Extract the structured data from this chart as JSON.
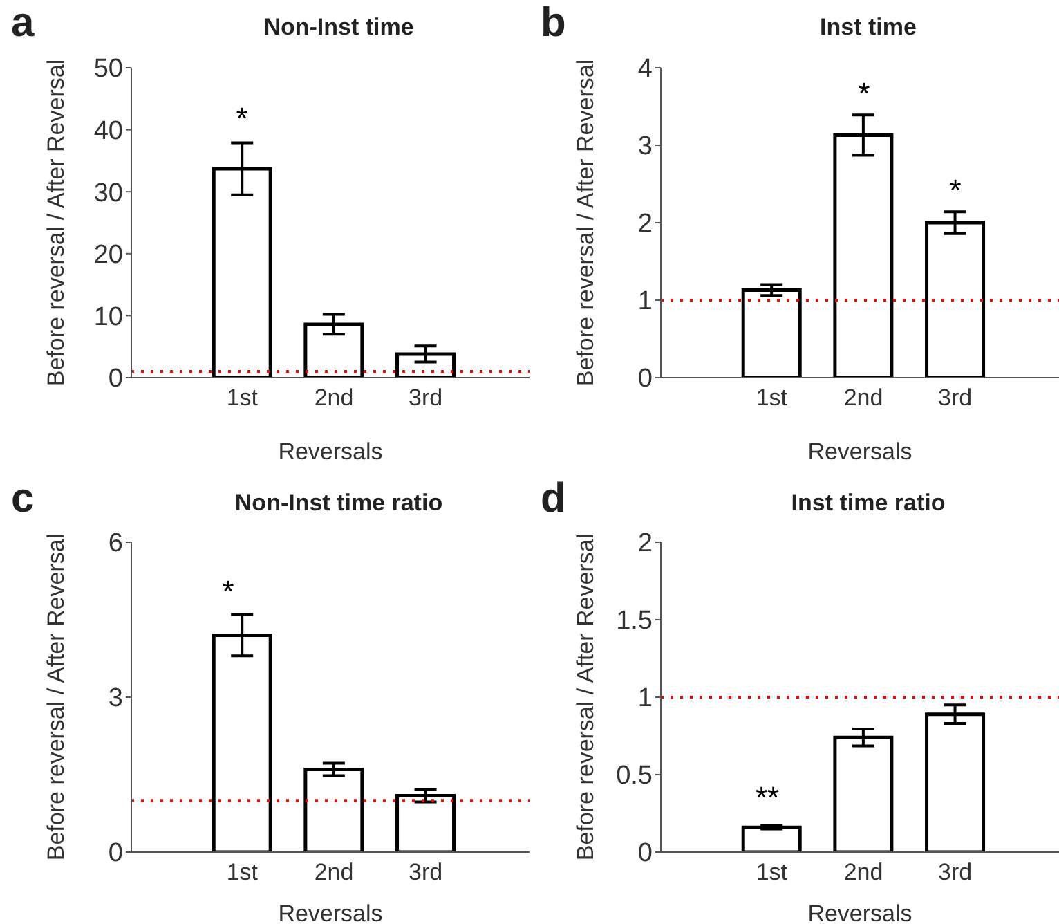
{
  "chart_data": [
    {
      "type": "bar",
      "title": "Non-Inst time",
      "xlabel": "Reversals",
      "ylabel": "Before reversal / After Reversal",
      "categories": [
        "1st",
        "2nd",
        "3rd"
      ],
      "values": [
        33.7,
        8.6,
        3.8
      ],
      "errors": [
        4.2,
        1.6,
        1.3
      ],
      "color": "#ffffff",
      "ylim": [
        0,
        50
      ],
      "yticks": [
        0,
        10,
        20,
        30,
        40,
        50
      ],
      "grid": false,
      "ref_lines": [
        {
          "axis": "y",
          "value": 1,
          "color": "#ff0000",
          "line_style": "dotted"
        }
      ],
      "annotations": [
        "a",
        "*"
      ]
    },
    {
      "type": "bar",
      "title": "Inst time",
      "xlabel": "Reversals",
      "ylabel": "Before reversal / After Reversal",
      "categories": [
        "1st",
        "2nd",
        "3rd"
      ],
      "values": [
        1.13,
        3.13,
        2.0
      ],
      "errors": [
        0.07,
        0.26,
        0.14
      ],
      "color": "#ffffff",
      "ylim": [
        0,
        4
      ],
      "yticks": [
        0,
        1,
        2,
        3,
        4
      ],
      "grid": false,
      "ref_lines": [
        {
          "axis": "y",
          "value": 1,
          "color": "#ff0000",
          "line_style": "dotted"
        }
      ],
      "annotations": [
        "b",
        "*",
        "*"
      ]
    },
    {
      "type": "bar",
      "title": "Non-Inst time ratio",
      "xlabel": "Reversals",
      "ylabel": "Before reversal / After Reversal",
      "categories": [
        "1st",
        "2nd",
        "3rd"
      ],
      "values": [
        4.2,
        1.6,
        1.09
      ],
      "errors": [
        0.4,
        0.12,
        0.12
      ],
      "color": "#ffffff",
      "ylim": [
        0,
        6
      ],
      "yticks": [
        0,
        3,
        6
      ],
      "grid": false,
      "ref_lines": [
        {
          "axis": "y",
          "value": 1,
          "color": "#ff0000",
          "line_style": "dotted"
        }
      ],
      "annotations": [
        "c",
        "*"
      ]
    },
    {
      "type": "bar",
      "title": "Inst time ratio",
      "xlabel": "Reversals",
      "ylabel": "Before reversal / After Reversal",
      "categories": [
        "1st",
        "2nd",
        "3rd"
      ],
      "values": [
        0.16,
        0.74,
        0.89
      ],
      "errors": [
        0.01,
        0.055,
        0.06
      ],
      "color": "#ffffff",
      "ylim": [
        0,
        2
      ],
      "yticks": [
        0,
        0.5,
        1,
        1.5,
        2
      ],
      "grid": false,
      "ref_lines": [
        {
          "axis": "y",
          "value": 1,
          "color": "#ff0000",
          "line_style": "dotted"
        }
      ],
      "annotations": [
        "d",
        "**"
      ]
    }
  ]
}
